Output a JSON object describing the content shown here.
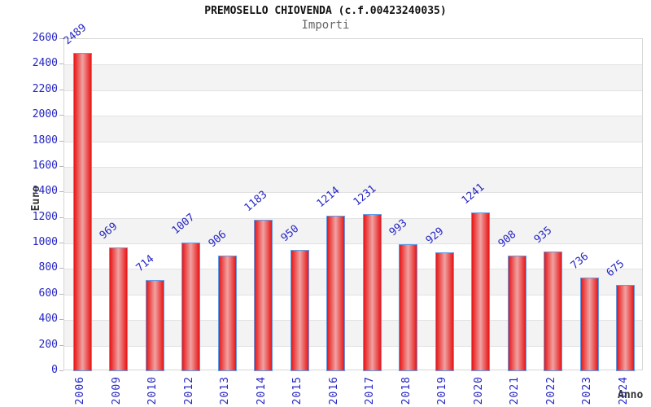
{
  "chart_data": {
    "type": "bar",
    "title": "PREMOSELLO CHIOVENDA (c.f.00423240035)",
    "subtitle": "Importi",
    "xlabel": "Anno",
    "ylabel": "Euro",
    "categories": [
      "2006",
      "2009",
      "2010",
      "2012",
      "2013",
      "2014",
      "2015",
      "2016",
      "2017",
      "2018",
      "2019",
      "2020",
      "2021",
      "2022",
      "2023",
      "2024"
    ],
    "values": [
      2489,
      969,
      714,
      1007,
      906,
      1183,
      950,
      1214,
      1231,
      993,
      929,
      1241,
      908,
      935,
      736,
      675
    ],
    "ylim": [
      0,
      2600
    ],
    "ytick_step": 200,
    "grid": true,
    "legend": "none",
    "colors": {
      "bar_fill": "#e81616",
      "bar_fill_center": "#f0a2a2",
      "bar_border": "#5e9ce8",
      "label_text": "#2525c4",
      "band_stripe": "#f3f3f3",
      "gridline": "#e2e2e2",
      "axis_title_text": "#333333",
      "subtitle_text": "#666666",
      "title_text": "#111111"
    }
  }
}
